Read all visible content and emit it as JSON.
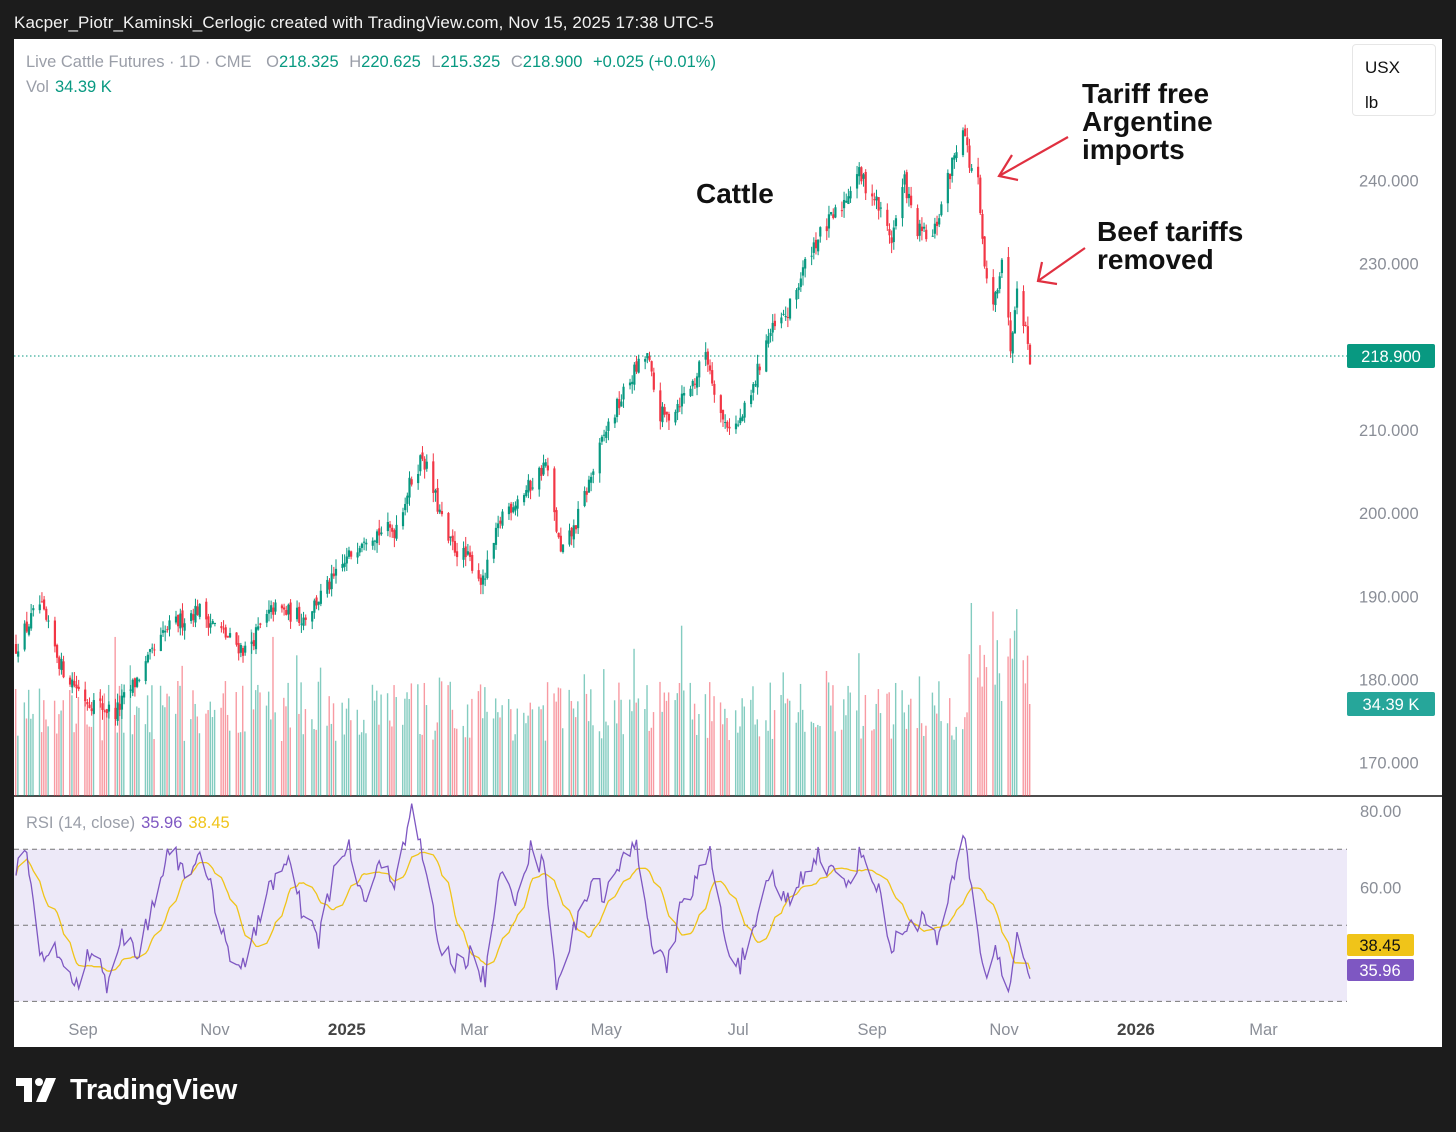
{
  "header": {
    "caption": "Kacper_Piotr_Kaminski_Cerlogic created with TradingView.com, Nov 15, 2025 17:38 UTC-5"
  },
  "legend": {
    "symbol": "Live Cattle Futures · 1D · CME",
    "o_label": "O",
    "o_value": "218.325",
    "h_label": "H",
    "h_value": "220.625",
    "l_label": "L",
    "l_value": "215.325",
    "c_label": "C",
    "c_value": "218.900",
    "change": "+0.025 (+0.01%)",
    "vol_label": "Vol",
    "vol_value": "34.39 K"
  },
  "units": {
    "currency": "USX",
    "unit": "lb"
  },
  "annotations": {
    "title": "Cattle",
    "tariff_free": [
      "Tariff free",
      "Argentine",
      "imports"
    ],
    "beef_tariffs": [
      "Beef tariffs",
      "removed"
    ]
  },
  "rsi_legend": {
    "name": "RSI (14, close)",
    "rsi": "35.96",
    "ma": "38.45"
  },
  "badges": {
    "price": "218.900",
    "volume": "34.39 K",
    "rsi_ma": "38.45",
    "rsi": "35.96"
  },
  "colors": {
    "up": "#089981",
    "down": "#f23645",
    "rsi": "#7e57c2",
    "rsi_ma": "#f0c419",
    "band": "#ede9f8",
    "annotation_arrow": "#e03040"
  },
  "logo": {
    "name": "TradingView"
  },
  "chart_data": [
    {
      "type": "candlestick",
      "title": "Cattle",
      "y_ticks": [
        "240.000",
        "230.000",
        "210.000",
        "200.000",
        "190.000",
        "180.000",
        "170.000"
      ],
      "ylim": [
        166,
        257
      ],
      "x_ticks": [
        "Sep",
        "Nov",
        "2025",
        "Mar",
        "May",
        "Jul",
        "Sep",
        "Nov",
        "2026",
        "Mar"
      ],
      "last_price": 218.9,
      "keypoints": [
        [
          "2024-08-01",
          184
        ],
        [
          "2024-08-12",
          189
        ],
        [
          "2024-08-22",
          181.5
        ],
        [
          "2024-09-03",
          177.5
        ],
        [
          "2024-09-16",
          176
        ],
        [
          "2024-09-26",
          180
        ],
        [
          "2024-10-10",
          186
        ],
        [
          "2024-10-24",
          188.5
        ],
        [
          "2024-11-07",
          185
        ],
        [
          "2024-11-15",
          183.5
        ],
        [
          "2024-11-28",
          188.5
        ],
        [
          "2024-12-12",
          187.5
        ],
        [
          "2024-12-26",
          192
        ],
        [
          "2025-01-09",
          197.5
        ],
        [
          "2025-01-23",
          198
        ],
        [
          "2025-01-31",
          204
        ],
        [
          "2025-02-05",
          207
        ],
        [
          "2025-02-17",
          196.5
        ],
        [
          "2025-02-28",
          194
        ],
        [
          "2025-03-05",
          191.5
        ],
        [
          "2025-03-14",
          200
        ],
        [
          "2025-03-26",
          203
        ],
        [
          "2025-04-03",
          206
        ],
        [
          "2025-04-10",
          195
        ],
        [
          "2025-04-16",
          198
        ],
        [
          "2025-05-01",
          210
        ],
        [
          "2025-05-14",
          217
        ],
        [
          "2025-05-20",
          219
        ],
        [
          "2025-05-25",
          212
        ],
        [
          "2025-05-29",
          211.5
        ],
        [
          "2025-06-11",
          216
        ],
        [
          "2025-06-16",
          219.5
        ],
        [
          "2025-06-24",
          211
        ],
        [
          "2025-07-01",
          210.5
        ],
        [
          "2025-07-07",
          214
        ],
        [
          "2025-07-14",
          221
        ],
        [
          "2025-07-24",
          224
        ],
        [
          "2025-08-04",
          232
        ],
        [
          "2025-08-18",
          237
        ],
        [
          "2025-08-25",
          241
        ],
        [
          "2025-09-02",
          238
        ],
        [
          "2025-09-10",
          233
        ],
        [
          "2025-09-16",
          240
        ],
        [
          "2025-09-21",
          234
        ],
        [
          "2025-09-29",
          233
        ],
        [
          "2025-10-07",
          241
        ],
        [
          "2025-10-13",
          247
        ],
        [
          "2025-10-16",
          242
        ],
        [
          "2025-10-20",
          239.5
        ],
        [
          "2025-10-22",
          232
        ],
        [
          "2025-10-26",
          223
        ],
        [
          "2025-10-31",
          231
        ],
        [
          "2025-11-04",
          220
        ],
        [
          "2025-11-07",
          228
        ],
        [
          "2025-11-11",
          222
        ],
        [
          "2025-11-13",
          218.9
        ]
      ],
      "volume_last": "34.39 K"
    },
    {
      "type": "line",
      "title": "RSI (14, close)",
      "y_ticks": [
        "80.00",
        "60.00"
      ],
      "ylim": [
        18,
        84
      ],
      "bands": [
        30,
        50,
        70
      ],
      "series": [
        {
          "name": "RSI",
          "last": 35.96
        },
        {
          "name": "MA",
          "last": 38.45
        }
      ],
      "rsi_keypoints": [
        [
          "2024-08-01",
          66
        ],
        [
          "2024-08-06",
          68
        ],
        [
          "2024-08-12",
          40
        ],
        [
          "2024-08-19",
          45
        ],
        [
          "2024-08-28",
          33
        ],
        [
          "2024-09-05",
          44
        ],
        [
          "2024-09-12",
          35
        ],
        [
          "2024-09-19",
          48
        ],
        [
          "2024-09-26",
          42
        ],
        [
          "2024-10-03",
          55
        ],
        [
          "2024-10-11",
          71
        ],
        [
          "2024-10-18",
          64
        ],
        [
          "2024-10-24",
          68
        ],
        [
          "2024-10-31",
          58
        ],
        [
          "2024-11-07",
          44
        ],
        [
          "2024-11-15",
          38
        ],
        [
          "2024-11-25",
          60
        ],
        [
          "2024-12-05",
          66
        ],
        [
          "2024-12-12",
          52
        ],
        [
          "2024-12-19",
          46
        ],
        [
          "2024-12-26",
          64
        ],
        [
          "2025-01-02",
          70
        ],
        [
          "2025-01-09",
          56
        ],
        [
          "2025-01-16",
          65
        ],
        [
          "2025-01-23",
          62
        ],
        [
          "2025-01-31",
          81
        ],
        [
          "2025-02-06",
          65
        ],
        [
          "2025-02-13",
          44
        ],
        [
          "2025-02-20",
          40
        ],
        [
          "2025-02-27",
          42
        ],
        [
          "2025-03-06",
          36
        ],
        [
          "2025-03-13",
          63
        ],
        [
          "2025-03-20",
          58
        ],
        [
          "2025-03-27",
          70
        ],
        [
          "2025-04-03",
          64
        ],
        [
          "2025-04-08",
          35
        ],
        [
          "2025-04-16",
          48
        ],
        [
          "2025-04-24",
          62
        ],
        [
          "2025-05-01",
          58
        ],
        [
          "2025-05-08",
          66
        ],
        [
          "2025-05-15",
          72
        ],
        [
          "2025-05-22",
          46
        ],
        [
          "2025-05-29",
          38
        ],
        [
          "2025-06-05",
          56
        ],
        [
          "2025-06-12",
          62
        ],
        [
          "2025-06-18",
          69
        ],
        [
          "2025-06-25",
          46
        ],
        [
          "2025-07-02",
          40
        ],
        [
          "2025-07-09",
          48
        ],
        [
          "2025-07-16",
          64
        ],
        [
          "2025-07-23",
          56
        ],
        [
          "2025-07-30",
          62
        ],
        [
          "2025-08-06",
          69
        ],
        [
          "2025-08-13",
          64
        ],
        [
          "2025-08-20",
          61
        ],
        [
          "2025-08-27",
          69
        ],
        [
          "2025-09-03",
          61
        ],
        [
          "2025-09-10",
          44
        ],
        [
          "2025-09-17",
          50
        ],
        [
          "2025-09-24",
          52
        ],
        [
          "2025-10-01",
          46
        ],
        [
          "2025-10-08",
          60
        ],
        [
          "2025-10-13",
          74
        ],
        [
          "2025-10-17",
          61
        ],
        [
          "2025-10-23",
          36
        ],
        [
          "2025-10-28",
          45
        ],
        [
          "2025-11-03",
          31
        ],
        [
          "2025-11-07",
          48
        ],
        [
          "2025-11-10",
          44
        ],
        [
          "2025-11-13",
          35.96
        ]
      ]
    }
  ]
}
